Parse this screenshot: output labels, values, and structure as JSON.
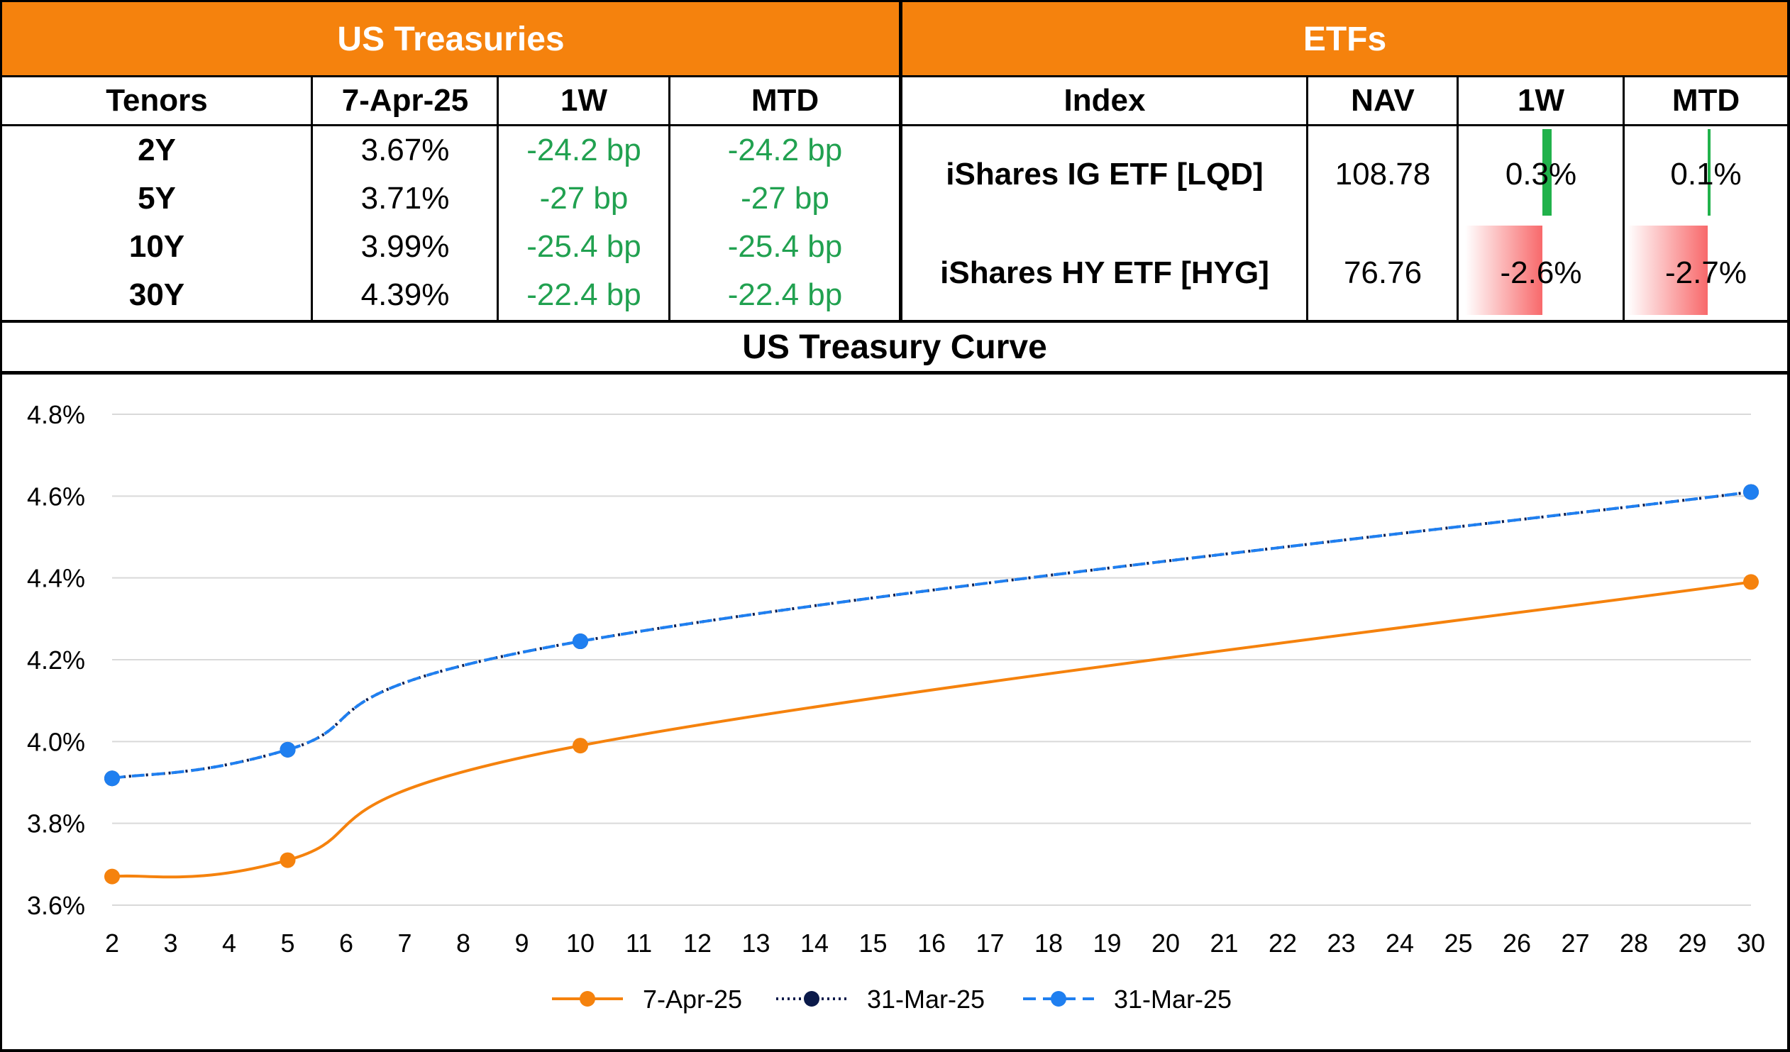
{
  "treasuries": {
    "header": "US Treasuries",
    "columns": [
      "Tenors",
      "7-Apr-25",
      "1W",
      "MTD"
    ],
    "rows": [
      {
        "tenor": "2Y",
        "yield": "3.67%",
        "w1": "-24.2 bp",
        "mtd": "-24.2 bp"
      },
      {
        "tenor": "5Y",
        "yield": "3.71%",
        "w1": "-27 bp",
        "mtd": "-27 bp"
      },
      {
        "tenor": "10Y",
        "yield": "3.99%",
        "w1": "-25.4 bp",
        "mtd": "-25.4 bp"
      },
      {
        "tenor": "30Y",
        "yield": "4.39%",
        "w1": "-22.4 bp",
        "mtd": "-22.4 bp"
      }
    ]
  },
  "etfs": {
    "header": "ETFs",
    "columns": [
      "Index",
      "NAV",
      "1W",
      "MTD"
    ],
    "rows": [
      {
        "name": "iShares IG ETF [LQD]",
        "nav": "108.78",
        "w1": "0.3%",
        "mtd": "0.1%",
        "w1_value": 0.3,
        "mtd_value": 0.1
      },
      {
        "name": "iShares HY ETF [HYG]",
        "nav": "76.76",
        "w1": "-2.6%",
        "mtd": "-2.7%",
        "w1_value": -2.6,
        "mtd_value": -2.7
      }
    ],
    "bar_colors": {
      "positive": "#21b24b",
      "negative": "#f8696b"
    }
  },
  "chart_title": "US Treasury Curve",
  "chart_data": {
    "type": "line",
    "title": "US Treasury Curve",
    "x": [
      2,
      5,
      10,
      30
    ],
    "xticks": [
      2,
      3,
      4,
      5,
      6,
      7,
      8,
      9,
      10,
      11,
      12,
      13,
      14,
      15,
      16,
      17,
      18,
      19,
      20,
      21,
      22,
      23,
      24,
      25,
      26,
      27,
      28,
      29,
      30
    ],
    "xlim": [
      2,
      30
    ],
    "ylim": [
      3.6,
      4.8
    ],
    "yticks": [
      "3.6%",
      "3.8%",
      "4.0%",
      "4.2%",
      "4.4%",
      "4.6%",
      "4.8%"
    ],
    "ytick_values": [
      3.6,
      3.8,
      4.0,
      4.2,
      4.4,
      4.6,
      4.8
    ],
    "grid": true,
    "legend_position": "bottom",
    "series": [
      {
        "name": "7-Apr-25",
        "values": [
          3.67,
          3.71,
          3.99,
          4.39
        ],
        "color": "#f5820d",
        "style": "solid"
      },
      {
        "name": "31-Mar-25",
        "values": [
          3.91,
          3.98,
          4.245,
          4.61
        ],
        "color": "#0b1a4a",
        "style": "dotted"
      },
      {
        "name": "31-Mar-25",
        "values": [
          3.91,
          3.98,
          4.245,
          4.61
        ],
        "color": "#1f7ff0",
        "style": "dashed"
      }
    ]
  }
}
